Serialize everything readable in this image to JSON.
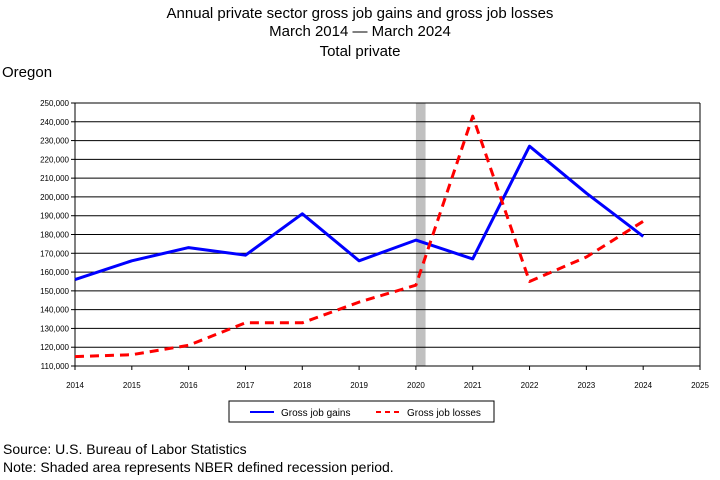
{
  "header": {
    "title": "Annual private sector gross job gains and gross job losses",
    "subtitle": "March 2014 — March 2024",
    "series_label": "Total private",
    "region": "Oregon"
  },
  "footer": {
    "source": "Source: U.S. Bureau of Labor Statistics",
    "note": "Note: Shaded area represents NBER defined recession period."
  },
  "chart_data": {
    "type": "line",
    "title": "Annual private sector gross job gains and gross job losses",
    "xlim": [
      2014,
      2025
    ],
    "ylim": [
      110000,
      250000
    ],
    "x_ticks": [
      2014,
      2015,
      2016,
      2017,
      2018,
      2019,
      2020,
      2021,
      2022,
      2023,
      2024,
      2025
    ],
    "y_ticks": [
      110000,
      120000,
      130000,
      140000,
      150000,
      160000,
      170000,
      180000,
      190000,
      200000,
      210000,
      220000,
      230000,
      240000,
      250000
    ],
    "y_tick_labels": [
      "110,000",
      "120,000",
      "130,000",
      "140,000",
      "150,000",
      "160,000",
      "170,000",
      "180,000",
      "190,000",
      "200,000",
      "210,000",
      "220,000",
      "230,000",
      "240,000",
      "250,000"
    ],
    "grid": true,
    "recession": {
      "start": 2020.0,
      "end": 2020.17,
      "color": "#c0c0c0"
    },
    "legend_placement": "bottom",
    "series": [
      {
        "name": "Gross job gains",
        "color": "#0000ff",
        "style": "solid",
        "x": [
          2014,
          2015,
          2016,
          2017,
          2018,
          2019,
          2020,
          2021,
          2022,
          2023,
          2024
        ],
        "values": [
          156000,
          166000,
          173000,
          169000,
          191000,
          166000,
          177000,
          167000,
          227000,
          202000,
          179000
        ]
      },
      {
        "name": "Gross job losses",
        "color": "#ff0000",
        "style": "dashed",
        "x": [
          2014,
          2015,
          2016,
          2017,
          2018,
          2019,
          2020,
          2021,
          2022,
          2023,
          2024
        ],
        "values": [
          115000,
          116000,
          121000,
          133000,
          133000,
          144000,
          153000,
          243000,
          155000,
          168000,
          187000
        ]
      }
    ]
  }
}
